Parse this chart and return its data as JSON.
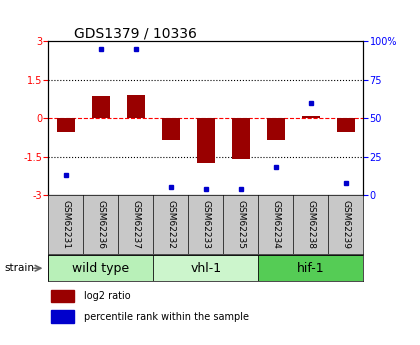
{
  "title": "GDS1379 / 10336",
  "samples": [
    "GSM62231",
    "GSM62236",
    "GSM62237",
    "GSM62232",
    "GSM62233",
    "GSM62235",
    "GSM62234",
    "GSM62238",
    "GSM62239"
  ],
  "log2_ratio": [
    -0.55,
    0.85,
    0.9,
    -0.85,
    -1.75,
    -1.6,
    -0.85,
    0.08,
    -0.55
  ],
  "percentile_rank": [
    13,
    95,
    95,
    5,
    4,
    4,
    18,
    60,
    8
  ],
  "groups": [
    {
      "label": "wild type",
      "start": 0,
      "end": 3,
      "color": "#b8f0b8"
    },
    {
      "label": "vhl-1",
      "start": 3,
      "end": 6,
      "color": "#ccf5cc"
    },
    {
      "label": "hif-1",
      "start": 6,
      "end": 9,
      "color": "#55cc55"
    }
  ],
  "ylim_left": [
    -3,
    3
  ],
  "ylim_right": [
    0,
    100
  ],
  "yticks_left": [
    -3,
    -1.5,
    0,
    1.5,
    3
  ],
  "yticks_right": [
    0,
    25,
    50,
    75,
    100
  ],
  "dotted_lines": [
    -1.5,
    1.5
  ],
  "bar_color": "#990000",
  "dot_color": "#0000cc",
  "bar_width": 0.5,
  "sample_bg_color": "#c8c8c8",
  "title_fontsize": 10,
  "tick_fontsize": 7,
  "sample_fontsize": 6.5,
  "group_fontsize": 9,
  "legend_fontsize": 7,
  "legend_red_label": "log2 ratio",
  "legend_blue_label": "percentile rank within the sample",
  "strain_label": "strain"
}
